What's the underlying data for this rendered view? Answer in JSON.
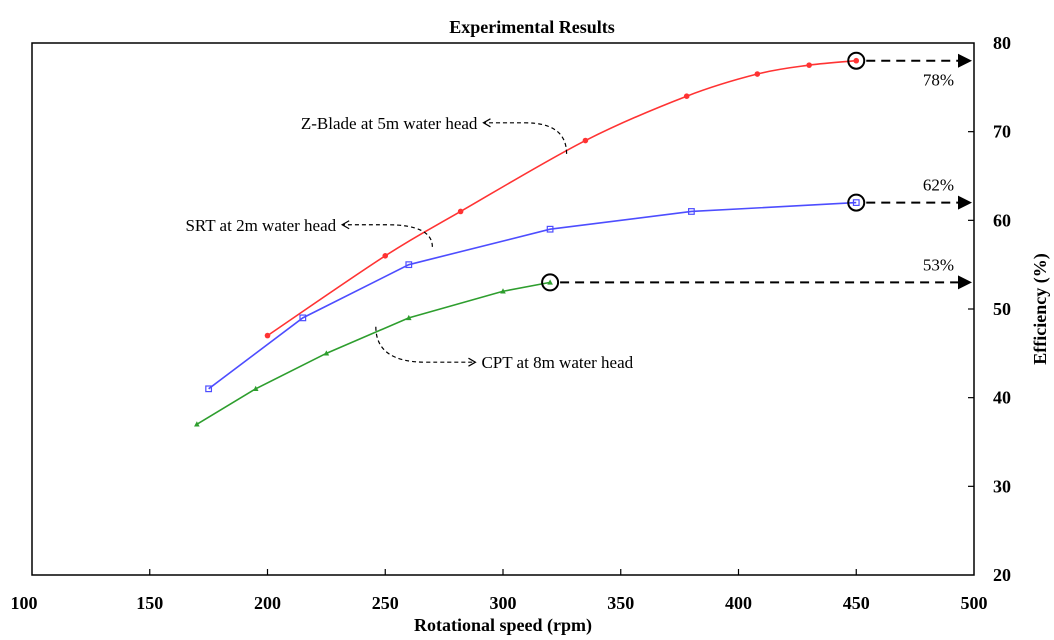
{
  "chart_data": {
    "type": "line",
    "title": "Experimental Results",
    "xlabel": "Rotational speed (rpm)",
    "ylabel": "Efficiency (%)",
    "xlim": [
      100,
      500
    ],
    "ylim": [
      20,
      80
    ],
    "xticks": [
      100,
      150,
      200,
      250,
      300,
      350,
      400,
      450,
      500
    ],
    "yticks": [
      20,
      30,
      40,
      50,
      60,
      70,
      80
    ],
    "y_axis_side": "right",
    "grid": false,
    "series": [
      {
        "key": "z-blade",
        "color": "#ff3333",
        "marker": "dot",
        "x": [
          200,
          250,
          282,
          335,
          378,
          408,
          430,
          450
        ],
        "y": [
          47,
          56,
          61,
          69,
          74,
          76.5,
          77.5,
          78
        ]
      },
      {
        "key": "srt",
        "color": "#4d4dff",
        "marker": "square",
        "x": [
          175,
          215,
          260,
          320,
          380,
          450
        ],
        "y": [
          41,
          49,
          55,
          59,
          61,
          62
        ]
      },
      {
        "key": "cpt",
        "color": "#2e9e2e",
        "marker": "triangle",
        "x": [
          170,
          195,
          225,
          260,
          300,
          320
        ],
        "y": [
          37,
          41,
          45,
          49,
          52,
          53
        ]
      }
    ],
    "annotations": [
      {
        "key": "z-blade-label",
        "text": "Z-Blade at 5m water head",
        "anchor_x": 327,
        "anchor_y": 67.5,
        "text_x": 290,
        "text_y": 71
      },
      {
        "key": "srt-label",
        "text": "SRT at 2m water head",
        "anchor_x": 270,
        "anchor_y": 57,
        "text_x": 230,
        "text_y": 59.5
      },
      {
        "key": "cpt-label",
        "text": "CPT at 8m water head",
        "anchor_x": 246,
        "anchor_y": 48,
        "text_x": 290,
        "text_y": 44
      }
    ],
    "peaks": [
      {
        "key": "z-blade-peak",
        "x": 450,
        "y": 78,
        "label": "78%"
      },
      {
        "key": "srt-peak",
        "x": 450,
        "y": 62,
        "label": "62%"
      },
      {
        "key": "cpt-peak",
        "x": 320,
        "y": 53,
        "label": "53%"
      }
    ]
  }
}
